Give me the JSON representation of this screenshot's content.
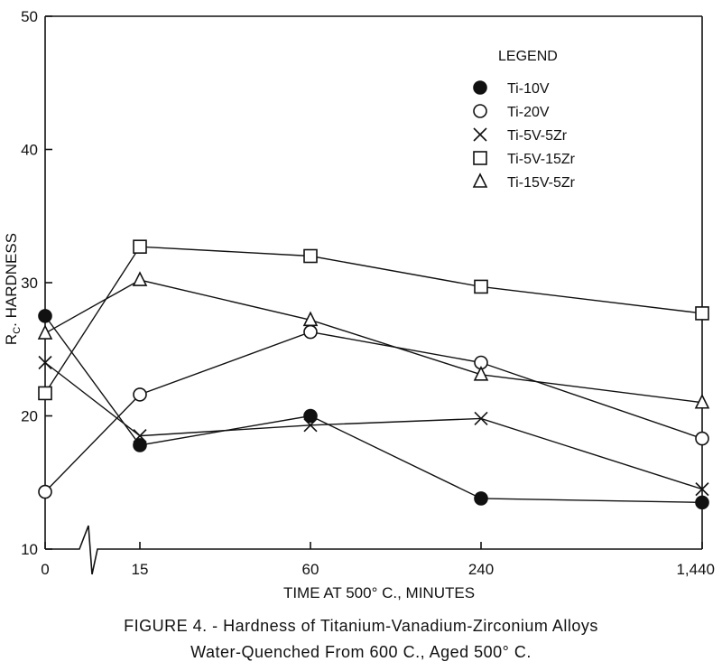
{
  "chart_data": {
    "type": "line",
    "x": [
      "0",
      "15",
      "60",
      "240",
      "1,440"
    ],
    "xlabel": "TIME AT 500° C., MINUTES",
    "ylabel_main": "R",
    "ylabel_sub": "C",
    "ylabel_rest": ". HARDNESS",
    "yticks": [
      "10",
      "20",
      "30",
      "40",
      "50"
    ],
    "ylim": [
      10,
      50
    ],
    "legend_title": "LEGEND",
    "legend_position": "top-right",
    "series": [
      {
        "name": "Ti-10V",
        "marker": "filled-circle",
        "values": [
          27.5,
          17.8,
          20.0,
          13.8,
          13.5
        ]
      },
      {
        "name": "Ti-20V",
        "marker": "open-circle",
        "values": [
          14.3,
          21.6,
          26.3,
          24.0,
          18.3
        ]
      },
      {
        "name": "Ti-5V-5Zr",
        "marker": "cross",
        "values": [
          24.0,
          18.5,
          19.3,
          19.8,
          14.5
        ]
      },
      {
        "name": "Ti-5V-15Zr",
        "marker": "open-square",
        "values": [
          21.7,
          32.7,
          32.0,
          29.7,
          27.7
        ]
      },
      {
        "name": "Ti-15V-5Zr",
        "marker": "open-triangle",
        "values": [
          26.2,
          30.2,
          27.2,
          23.1,
          21.0
        ]
      }
    ]
  },
  "caption": {
    "line1": "FIGURE 4. - Hardness of Titanium-Vanadium-Zirconium Alloys",
    "line2": "Water-Quenched From 600  C., Aged 500° C."
  }
}
